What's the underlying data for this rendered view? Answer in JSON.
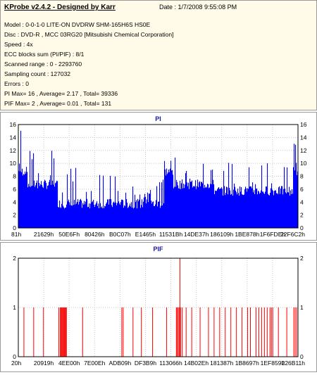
{
  "header": {
    "title": "KProbe v2.4.2 - Designed by Karr",
    "date": "Date : 1/7/2008 9:55:08 PM",
    "lines": [
      "Model : 0-0-1-0 LITE-ON DVDRW SHM-165H6S HS0E",
      "Disc : DVD-R , MCC 03RG20   [Mitsubishi Chemical Corporation]",
      "Speed : 4x",
      "ECC blocks sum (PI/PIF) : 8/1",
      "Scanned range : 0 - 2293760",
      "Sampling count : 127032",
      "Errors : 0",
      "PI Max= 16 , Average= 2.17 , Total= 39336",
      "PIF Max= 2 , Average= 0.01 , Total= 131"
    ]
  },
  "colors": {
    "pi_series": "#0000ff",
    "pif_series": "#ff0000",
    "background": "#ffffff",
    "panel_bg": "#fffbe8"
  },
  "chart_data": [
    {
      "type": "bar",
      "title": "PI",
      "ylim": [
        0,
        16
      ],
      "yticks": [
        0,
        2,
        4,
        6,
        8,
        10,
        12,
        14,
        16
      ],
      "xtick_labels": [
        "81h",
        "21629h",
        "50E6Fh",
        "80426h",
        "B0C07h",
        "E1465h",
        "11531Bh",
        "14DE37h",
        "186109h",
        "1BE878h",
        "1F6FDEh",
        "22F6C2h"
      ],
      "grid": true,
      "series": [
        {
          "color": "#0000ff",
          "segments": [
            {
              "x_range": [
                0.0,
                0.03
              ],
              "base": 8,
              "peak": 16
            },
            {
              "x_range": [
                0.03,
                0.14
              ],
              "base": 6,
              "peak": 12
            },
            {
              "x_range": [
                0.14,
                0.5
              ],
              "base": 3,
              "peak": 10
            },
            {
              "x_range": [
                0.5,
                0.52
              ],
              "base": 3,
              "peak": 12
            },
            {
              "x_range": [
                0.52,
                0.55
              ],
              "base": 8,
              "peak": 11
            },
            {
              "x_range": [
                0.55,
                0.7
              ],
              "base": 6,
              "peak": 11
            },
            {
              "x_range": [
                0.7,
                0.94
              ],
              "base": 5,
              "peak": 11
            },
            {
              "x_range": [
                0.94,
                0.98
              ],
              "base": 5,
              "peak": 10
            },
            {
              "x_range": [
                0.98,
                1.0
              ],
              "base": 8,
              "peak": 16
            }
          ]
        }
      ]
    },
    {
      "type": "bar",
      "title": "PIF",
      "ylim": [
        0,
        2
      ],
      "yticks": [
        0,
        1,
        2
      ],
      "xtick_labels": [
        "20h",
        "20919h",
        "4EE00h",
        "7E00Eh",
        "ADB09h",
        "DF3B9h",
        "113066h",
        "14B02Eh",
        "181387h",
        "1B8697h",
        "1EF859h",
        "226B11h"
      ],
      "grid": true,
      "series": [
        {
          "color": "#ff0000",
          "positions": [
            0.02,
            0.055,
            0.09,
            0.145,
            0.15,
            0.152,
            0.155,
            0.158,
            0.16,
            0.162,
            0.165,
            0.168,
            0.17,
            0.172,
            0.23,
            0.37,
            0.375,
            0.41,
            0.44,
            0.48,
            0.53,
            0.565,
            0.568,
            0.572,
            0.575,
            0.578,
            0.58,
            0.586,
            0.6,
            0.62,
            0.65,
            0.68,
            0.7,
            0.72,
            0.74,
            0.76,
            0.78,
            0.8,
            0.82,
            0.83,
            0.85,
            0.86,
            0.87,
            0.88,
            0.89,
            0.9,
            0.905,
            0.91,
            0.93,
            0.96,
            0.985,
            0.99,
            0.995
          ],
          "values": [
            1,
            1,
            1,
            1,
            1,
            1,
            1,
            1,
            1,
            1,
            1,
            1,
            1,
            1,
            1,
            1,
            1,
            1,
            1,
            1,
            1,
            1,
            1,
            1,
            1,
            2,
            1,
            1,
            1,
            1,
            1,
            1,
            1,
            1,
            1,
            1,
            1,
            1,
            1,
            1,
            1,
            1,
            1,
            1,
            1,
            1,
            1,
            1,
            1,
            1,
            1,
            1,
            1
          ]
        }
      ]
    }
  ]
}
